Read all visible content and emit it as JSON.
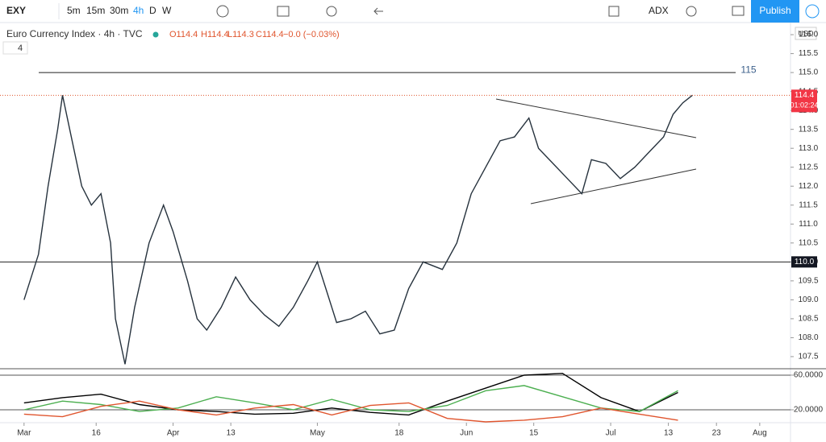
{
  "toolbar": {
    "symbol": "EXY",
    "intervals": [
      "5m",
      "15m",
      "30m",
      "4h",
      "D",
      "W"
    ],
    "indicator": "ADX",
    "publish": "Publish"
  },
  "legend": {
    "title": "Euro Currency Index · 4h · TVC",
    "ohlc": [
      "O114.4",
      "H114.4",
      "L114.3",
      "C114.4",
      "−0.0 (−0.03%)"
    ],
    "indicator_count": "4"
  },
  "currency": "USD",
  "chart_data": [
    {
      "type": "line",
      "x": [
        0,
        3,
        5,
        7,
        8,
        10,
        12,
        14,
        16,
        18,
        19,
        21,
        23,
        26,
        29,
        31,
        34,
        36,
        38,
        41,
        44,
        47,
        50,
        53,
        56,
        59,
        61,
        63,
        65,
        68,
        71,
        74,
        77,
        80,
        83,
        87,
        90,
        93,
        96,
        99,
        102,
        105,
        107,
        110,
        113,
        116,
        118,
        121,
        124,
        127,
        130,
        133,
        135,
        137,
        139
      ],
      "series": [
        {
          "color": "#26323d",
          "values": [
            109.0,
            110.2,
            112.0,
            113.5,
            114.4,
            113.2,
            112.0,
            111.5,
            111.8,
            110.5,
            108.5,
            107.3,
            108.8,
            110.5,
            111.5,
            110.8,
            109.5,
            108.5,
            108.2,
            108.8,
            109.6,
            109.0,
            108.6,
            108.3,
            108.8,
            109.5,
            110.0,
            109.2,
            108.4,
            108.5,
            108.7,
            108.1,
            108.2,
            109.3,
            110.0,
            109.8,
            110.5,
            111.8,
            112.5,
            113.2,
            113.3,
            113.8,
            113.0,
            112.6,
            112.2,
            111.8,
            112.7,
            112.6,
            112.2,
            112.5,
            112.9,
            113.3,
            113.9,
            114.2,
            114.4
          ]
        }
      ],
      "xlim": [
        -5,
        159.4
      ],
      "xticks": [
        {
          "value": 0,
          "label": "Mar"
        },
        {
          "value": 15,
          "label": "16"
        },
        {
          "value": 31,
          "label": "Apr"
        },
        {
          "value": 43,
          "label": "13"
        },
        {
          "value": 61,
          "label": "May"
        },
        {
          "value": 78,
          "label": "18"
        },
        {
          "value": 92,
          "label": "Jun"
        },
        {
          "value": 106,
          "label": "15"
        },
        {
          "value": 122,
          "label": "Jul"
        },
        {
          "value": 134,
          "label": "13"
        },
        {
          "value": 144,
          "label": "23"
        },
        {
          "value": 153,
          "label": "Aug"
        }
      ],
      "ylim": [
        107.18,
        116.32
      ],
      "yticks": [
        {
          "value": 107.5,
          "label": "107.5"
        },
        {
          "value": 108,
          "label": "108.0"
        },
        {
          "value": 108.5,
          "label": "108.5"
        },
        {
          "value": 109,
          "label": "109.0"
        },
        {
          "value": 109.5,
          "label": "109.5"
        },
        {
          "value": 110,
          "label": "110.0"
        },
        {
          "value": 110.5,
          "label": "110.5"
        },
        {
          "value": 111,
          "label": "111.0"
        },
        {
          "value": 111.5,
          "label": "111.5"
        },
        {
          "value": 112,
          "label": "112.0"
        },
        {
          "value": 112.5,
          "label": "112.5"
        },
        {
          "value": 113,
          "label": "113.0"
        },
        {
          "value": 113.5,
          "label": "113.5"
        },
        {
          "value": 114,
          "label": "114.0"
        },
        {
          "value": 114.5,
          "label": "114.5"
        },
        {
          "value": 115,
          "label": "115.0"
        },
        {
          "value": 115.5,
          "label": "115.5"
        },
        {
          "value": 116,
          "label": "116.0"
        }
      ],
      "levels": [
        {
          "value": 115,
          "label": "115"
        },
        {
          "value": 110,
          "label": "110.0"
        }
      ],
      "last_price": {
        "value": 114.4,
        "label": "114.4",
        "countdown": "01:02:24"
      }
    },
    {
      "type": "line",
      "x": [
        0,
        8,
        16,
        24,
        32,
        40,
        48,
        56,
        64,
        72,
        80,
        88,
        96,
        104,
        112,
        120,
        128,
        136
      ],
      "series": [
        {
          "color": "#000000",
          "values": [
            28,
            34,
            38,
            26,
            20,
            18,
            15,
            16,
            22,
            17,
            14,
            30,
            45,
            60,
            62,
            34,
            18,
            40
          ]
        },
        {
          "color": "#4caf50",
          "values": [
            20,
            30,
            26,
            18,
            22,
            35,
            28,
            20,
            32,
            20,
            18,
            25,
            42,
            48,
            35,
            22,
            18,
            42
          ]
        },
        {
          "color": "#e0552e",
          "values": [
            15,
            12,
            24,
            30,
            20,
            14,
            22,
            26,
            14,
            25,
            28,
            10,
            6,
            8,
            12,
            22,
            15,
            8
          ]
        }
      ],
      "xlim": [
        -5,
        159.4
      ],
      "ylim": [
        5.1,
        67.4
      ],
      "yticks": [
        {
          "value": 60,
          "label": "60.0000"
        },
        {
          "value": 20,
          "label": "20.0000"
        }
      ]
    }
  ]
}
